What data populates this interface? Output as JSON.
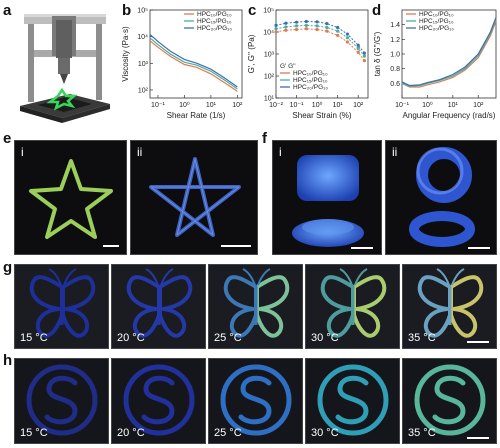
{
  "panels": {
    "a": "a",
    "b": "b",
    "c": "c",
    "d": "d",
    "e": "e",
    "f": "f",
    "g": "g",
    "h": "h"
  },
  "subpanels": {
    "e": [
      "i",
      "ii"
    ],
    "f": [
      "i",
      "ii"
    ]
  },
  "temperatures": [
    "15 °C",
    "20 °C",
    "25 °C",
    "30 °C",
    "35 °C"
  ],
  "colors": {
    "series1": "#e07a55",
    "series2": "#4caf9a",
    "series3": "#3f6fb0"
  },
  "chart_data": [
    {
      "type": "line",
      "panel": "b",
      "xlabel": "Shear Rate (1/s)",
      "ylabel": "Viscosity (Pa·s)",
      "xscale": "log",
      "yscale": "log",
      "xlim": [
        0.05,
        150
      ],
      "ylim": [
        50,
        100000
      ],
      "xticks": [
        "10⁻¹",
        "10⁰",
        "10¹",
        "10²"
      ],
      "yticks": [
        "10²",
        "10³",
        "10⁴",
        "10⁵"
      ],
      "legend_position": "top-right",
      "series": [
        {
          "name": "HPC₁₀/PG₁₀",
          "x": [
            0.05,
            0.1,
            0.3,
            1,
            3,
            10,
            30,
            100
          ],
          "y": [
            7000,
            4000,
            1800,
            900,
            700,
            400,
            200,
            90
          ]
        },
        {
          "name": "HPC₁₅/PG₁₀",
          "x": [
            0.05,
            0.1,
            0.3,
            1,
            3,
            10,
            30,
            100
          ],
          "y": [
            9000,
            5000,
            2200,
            1100,
            850,
            500,
            250,
            110
          ]
        },
        {
          "name": "HPC₂₀/PG₁₀",
          "x": [
            0.05,
            0.1,
            0.3,
            1,
            3,
            10,
            30,
            100
          ],
          "y": [
            12000,
            6500,
            2800,
            1400,
            1000,
            600,
            300,
            130
          ]
        }
      ]
    },
    {
      "type": "scatter",
      "panel": "c",
      "xlabel": "Shear Strain (%)",
      "ylabel": "G', G'' (Pa)",
      "xscale": "log",
      "yscale": "log",
      "xlim": [
        0.01,
        300
      ],
      "ylim": [
        10,
        100000
      ],
      "xticks": [
        "10⁻²",
        "10⁻¹",
        "10⁰",
        "10¹",
        "10²"
      ],
      "yticks": [
        "10¹",
        "10²",
        "10³",
        "10⁴",
        "10⁵"
      ],
      "legend_position": "bottom-left",
      "legend_header": "G'  G''",
      "series": [
        {
          "name": "HPC₁₀/PG₁₀",
          "x": [
            0.01,
            0.03,
            0.1,
            0.3,
            1,
            3,
            10,
            30,
            100,
            200
          ],
          "y": [
            10000,
            12000,
            13000,
            14000,
            13000,
            11000,
            7000,
            3500,
            1200,
            500
          ]
        },
        {
          "name": "HPC₁₅/PG₁₀",
          "x": [
            0.01,
            0.03,
            0.1,
            0.3,
            1,
            3,
            10,
            30,
            100,
            200
          ],
          "y": [
            14000,
            17000,
            19000,
            20000,
            19000,
            16000,
            11000,
            5500,
            1800,
            800
          ]
        },
        {
          "name": "HPC₂₀/PG₁₀",
          "x": [
            0.01,
            0.03,
            0.1,
            0.3,
            1,
            3,
            10,
            30,
            100,
            200
          ],
          "y": [
            20000,
            25000,
            28000,
            30000,
            29000,
            24000,
            16000,
            8000,
            2500,
            1100
          ]
        }
      ]
    },
    {
      "type": "line",
      "panel": "d",
      "xlabel": "Angular Frequency (rad/s)",
      "ylabel": "tan δ (G''/G')",
      "xscale": "log",
      "yscale": "linear",
      "xlim": [
        0.1,
        500
      ],
      "ylim": [
        0.4,
        1.6
      ],
      "xticks": [
        "10⁻¹",
        "10⁰",
        "10¹",
        "10²"
      ],
      "yticks": [
        "0.6",
        "0.8",
        "1.0",
        "1.2",
        "1.4"
      ],
      "legend_position": "top-left",
      "series": [
        {
          "name": "HPC₁₀/PG₁₀",
          "x": [
            0.1,
            0.2,
            0.5,
            1,
            3,
            10,
            30,
            100,
            300,
            500
          ],
          "y": [
            0.6,
            0.55,
            0.55,
            0.58,
            0.62,
            0.68,
            0.78,
            0.95,
            1.25,
            1.45
          ]
        },
        {
          "name": "HPC₁₅/PG₁₀",
          "x": [
            0.1,
            0.2,
            0.5,
            1,
            3,
            10,
            30,
            100,
            300,
            500
          ],
          "y": [
            0.6,
            0.56,
            0.57,
            0.6,
            0.64,
            0.7,
            0.8,
            0.98,
            1.28,
            1.48
          ]
        },
        {
          "name": "HPC₂₀/PG₁₀",
          "x": [
            0.1,
            0.2,
            0.5,
            1,
            3,
            10,
            30,
            100,
            300,
            500
          ],
          "y": [
            0.62,
            0.57,
            0.58,
            0.61,
            0.65,
            0.72,
            0.82,
            1.0,
            1.3,
            1.5
          ]
        }
      ]
    }
  ]
}
